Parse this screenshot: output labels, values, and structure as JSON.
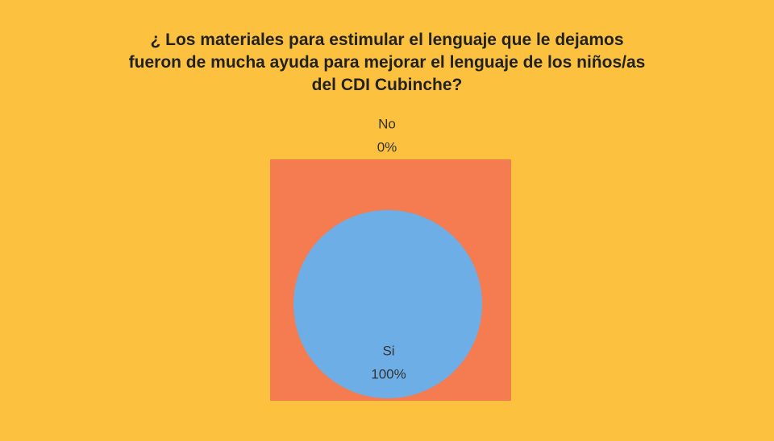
{
  "chart_data": {
    "type": "pie",
    "title": "¿ Los materiales para estimular el lenguaje que le dejamos\nfueron de mucha ayuda para mejorar el lenguaje de los niños/as\ndel CDI Cubinche?",
    "categories": [
      "No",
      "Si"
    ],
    "values": [
      0,
      100
    ],
    "value_labels": [
      "0%",
      "100%"
    ],
    "colors": [
      "#f47c50",
      "#6eaee6"
    ],
    "background": "#fcc13e",
    "plot_background": "#f47c50"
  }
}
